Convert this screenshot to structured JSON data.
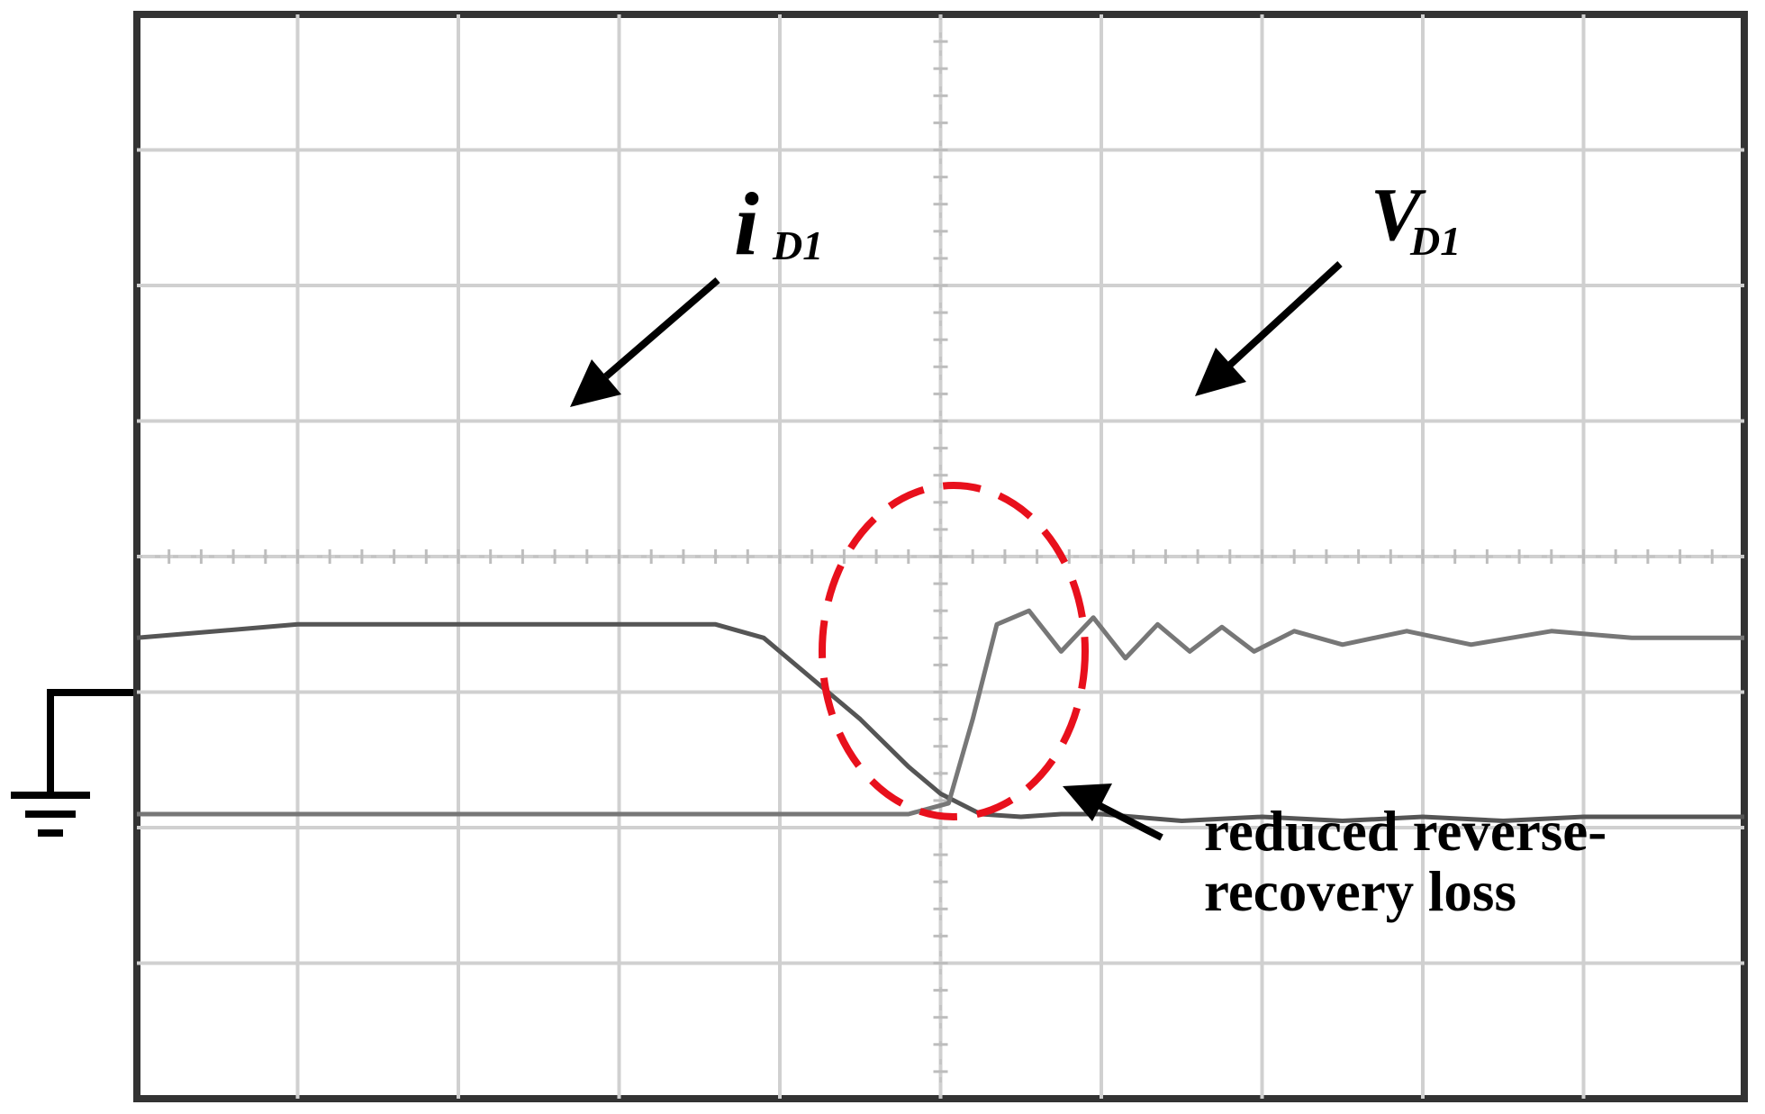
{
  "chart_data": {
    "type": "line",
    "title": "",
    "grid": true,
    "divisions": {
      "x": 10,
      "y": 8
    },
    "series": [
      {
        "name": "",
        "label_main": "i",
        "label_sub": "D1",
        "color": "#555555",
        "points": [
          [
            0,
            3.4
          ],
          [
            1,
            3.5
          ],
          [
            2,
            3.5
          ],
          [
            3,
            3.5
          ],
          [
            3.6,
            3.5
          ],
          [
            3.9,
            3.4
          ],
          [
            4.2,
            3.1
          ],
          [
            4.5,
            2.8
          ],
          [
            4.8,
            2.45
          ],
          [
            5.0,
            2.25
          ],
          [
            5.25,
            2.1
          ],
          [
            5.5,
            2.08
          ],
          [
            5.75,
            2.1
          ],
          [
            6.0,
            2.1
          ],
          [
            6.5,
            2.05
          ],
          [
            7,
            2.08
          ],
          [
            7.5,
            2.05
          ],
          [
            8,
            2.08
          ],
          [
            8.5,
            2.05
          ],
          [
            9,
            2.08
          ],
          [
            10,
            2.08
          ]
        ]
      },
      {
        "name": "",
        "label_main": "V",
        "label_sub": "D1",
        "color": "#777777",
        "points": [
          [
            0,
            2.1
          ],
          [
            1,
            2.1
          ],
          [
            2,
            2.1
          ],
          [
            3,
            2.1
          ],
          [
            4,
            2.1
          ],
          [
            4.8,
            2.1
          ],
          [
            5.05,
            2.18
          ],
          [
            5.2,
            2.8
          ],
          [
            5.35,
            3.5
          ],
          [
            5.55,
            3.6
          ],
          [
            5.75,
            3.3
          ],
          [
            5.95,
            3.55
          ],
          [
            6.15,
            3.25
          ],
          [
            6.35,
            3.5
          ],
          [
            6.55,
            3.3
          ],
          [
            6.75,
            3.48
          ],
          [
            6.95,
            3.3
          ],
          [
            7.2,
            3.45
          ],
          [
            7.5,
            3.35
          ],
          [
            7.9,
            3.45
          ],
          [
            8.3,
            3.35
          ],
          [
            8.8,
            3.45
          ],
          [
            9.3,
            3.4
          ],
          [
            10,
            3.4
          ]
        ]
      }
    ],
    "annotation": {
      "line1": "reduced reverse-",
      "line2": "recovery loss",
      "highlight_color": "#e8101c"
    }
  }
}
